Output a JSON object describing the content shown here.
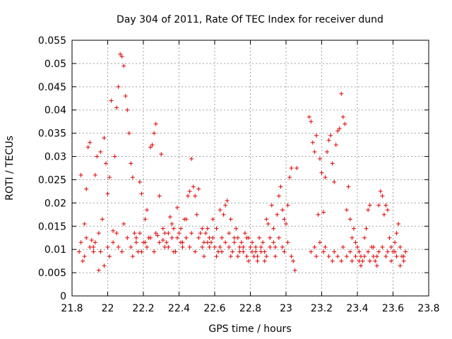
{
  "chart_data": {
    "type": "scatter",
    "title": "Day 304 of 2011, Rate Of TEC Index for receiver dund",
    "xlabel": "GPS time / hours",
    "ylabel": "ROTI / TECUs",
    "xlim": [
      21.8,
      23.8
    ],
    "ylim": [
      0,
      0.055
    ],
    "xticks": [
      21.8,
      22,
      22.2,
      22.4,
      22.6,
      22.8,
      23,
      23.2,
      23.4,
      23.6,
      23.8
    ],
    "xtick_labels": [
      "21.8",
      "22",
      "22.2",
      "22.4",
      "22.6",
      "22.8",
      "23",
      "23.2",
      "23.4",
      "23.6",
      "23.8"
    ],
    "yticks": [
      0,
      0.005,
      0.01,
      0.015,
      0.02,
      0.025,
      0.03,
      0.035,
      0.04,
      0.045,
      0.05,
      0.055
    ],
    "ytick_labels": [
      "0",
      "0.005",
      "0.01",
      "0.015",
      "0.02",
      "0.025",
      "0.03",
      "0.035",
      "0.04",
      "0.045",
      "0.05",
      "0.055"
    ],
    "grid": true,
    "marker": "plus",
    "color": "#dd0000",
    "series": [
      {
        "points": [
          [
            21.84,
            0.0095
          ],
          [
            21.85,
            0.026
          ],
          [
            21.86,
            0.0075
          ],
          [
            21.87,
            0.0155
          ],
          [
            21.88,
            0.023
          ],
          [
            21.89,
            0.032
          ],
          [
            21.9,
            0.033
          ],
          [
            21.91,
            0.012
          ],
          [
            21.92,
            0.0105
          ],
          [
            21.93,
            0.026
          ],
          [
            21.94,
            0.03
          ],
          [
            21.95,
            0.0055
          ],
          [
            21.96,
            0.031
          ],
          [
            21.97,
            0.0165
          ],
          [
            21.98,
            0.034
          ],
          [
            21.99,
            0.0285
          ],
          [
            22.0,
            0.022
          ],
          [
            22.01,
            0.0255
          ],
          [
            22.02,
            0.042
          ],
          [
            22.03,
            0.014
          ],
          [
            22.04,
            0.03
          ],
          [
            22.05,
            0.0405
          ],
          [
            22.06,
            0.045
          ],
          [
            22.07,
            0.052
          ],
          [
            22.08,
            0.0515
          ],
          [
            22.09,
            0.0495
          ],
          [
            22.1,
            0.043
          ],
          [
            22.11,
            0.04
          ],
          [
            22.12,
            0.035
          ],
          [
            22.13,
            0.0285
          ],
          [
            22.14,
            0.0255
          ],
          [
            22.15,
            0.0135
          ],
          [
            22.16,
            0.0115
          ],
          [
            22.17,
            0.0095
          ],
          [
            22.18,
            0.0245
          ],
          [
            22.19,
            0.022
          ],
          [
            22.2,
            0.0115
          ],
          [
            22.21,
            0.0165
          ],
          [
            22.22,
            0.0185
          ],
          [
            22.23,
            0.0125
          ],
          [
            22.24,
            0.032
          ],
          [
            22.25,
            0.0325
          ],
          [
            22.26,
            0.035
          ],
          [
            22.27,
            0.037
          ],
          [
            22.28,
            0.013
          ],
          [
            22.29,
            0.0215
          ],
          [
            22.3,
            0.0305
          ],
          [
            22.31,
            0.012
          ],
          [
            22.32,
            0.0135
          ],
          [
            22.33,
            0.0115
          ],
          [
            22.34,
            0.0105
          ],
          [
            22.35,
            0.017
          ],
          [
            22.36,
            0.0125
          ],
          [
            22.37,
            0.0145
          ],
          [
            22.38,
            0.0095
          ],
          [
            22.39,
            0.019
          ],
          [
            22.4,
            0.0135
          ],
          [
            22.41,
            0.0115
          ],
          [
            22.42,
            0.0105
          ],
          [
            22.43,
            0.0165
          ],
          [
            22.44,
            0.0125
          ],
          [
            22.45,
            0.0215
          ],
          [
            22.46,
            0.0225
          ],
          [
            22.47,
            0.0295
          ],
          [
            22.48,
            0.0235
          ],
          [
            22.49,
            0.0215
          ],
          [
            22.5,
            0.0175
          ],
          [
            22.51,
            0.023
          ],
          [
            22.52,
            0.0135
          ],
          [
            22.53,
            0.0105
          ],
          [
            22.54,
            0.0115
          ],
          [
            22.55,
            0.0135
          ],
          [
            22.56,
            0.0145
          ],
          [
            22.57,
            0.0125
          ],
          [
            22.58,
            0.0115
          ],
          [
            22.59,
            0.0165
          ],
          [
            22.6,
            0.0105
          ],
          [
            22.61,
            0.0145
          ],
          [
            22.62,
            0.0095
          ],
          [
            22.63,
            0.0185
          ],
          [
            22.64,
            0.0125
          ],
          [
            22.65,
            0.0175
          ],
          [
            22.66,
            0.0195
          ],
          [
            22.67,
            0.0205
          ],
          [
            22.68,
            0.0135
          ],
          [
            22.69,
            0.0165
          ],
          [
            22.7,
            0.0095
          ],
          [
            22.71,
            0.0125
          ],
          [
            22.72,
            0.0145
          ],
          [
            22.73,
            0.0085
          ],
          [
            22.74,
            0.0105
          ],
          [
            22.75,
            0.0115
          ],
          [
            22.76,
            0.0095
          ],
          [
            22.77,
            0.0135
          ],
          [
            22.78,
            0.0125
          ],
          [
            22.79,
            0.0075
          ],
          [
            22.8,
            0.0105
          ],
          [
            22.81,
            0.0115
          ],
          [
            22.82,
            0.0085
          ],
          [
            22.83,
            0.0095
          ],
          [
            22.84,
            0.0075
          ],
          [
            22.85,
            0.0125
          ],
          [
            22.86,
            0.0095
          ],
          [
            22.87,
            0.0115
          ],
          [
            22.88,
            0.0075
          ],
          [
            22.89,
            0.0165
          ],
          [
            22.9,
            0.0155
          ],
          [
            22.91,
            0.0125
          ],
          [
            22.92,
            0.0195
          ],
          [
            22.93,
            0.0145
          ],
          [
            22.94,
            0.0105
          ],
          [
            22.95,
            0.0175
          ],
          [
            22.96,
            0.0215
          ],
          [
            22.97,
            0.0235
          ],
          [
            22.98,
            0.0185
          ],
          [
            22.99,
            0.0165
          ],
          [
            23.0,
            0.0155
          ],
          [
            23.01,
            0.0195
          ],
          [
            23.02,
            0.0255
          ],
          [
            23.03,
            0.0275
          ],
          [
            23.04,
            0.0075
          ],
          [
            23.05,
            0.0055
          ],
          [
            23.06,
            0.0275
          ],
          [
            23.13,
            0.0385
          ],
          [
            23.14,
            0.0375
          ],
          [
            23.15,
            0.033
          ],
          [
            23.16,
            0.031
          ],
          [
            23.17,
            0.0345
          ],
          [
            23.18,
            0.0175
          ],
          [
            23.19,
            0.0295
          ],
          [
            23.2,
            0.0265
          ],
          [
            23.21,
            0.018
          ],
          [
            23.22,
            0.0255
          ],
          [
            23.23,
            0.031
          ],
          [
            23.24,
            0.0335
          ],
          [
            23.25,
            0.0345
          ],
          [
            23.26,
            0.0285
          ],
          [
            23.27,
            0.0245
          ],
          [
            23.28,
            0.0325
          ],
          [
            23.29,
            0.0355
          ],
          [
            23.3,
            0.036
          ],
          [
            23.31,
            0.0435
          ],
          [
            23.32,
            0.0385
          ],
          [
            23.33,
            0.037
          ],
          [
            23.34,
            0.0185
          ],
          [
            23.35,
            0.0235
          ],
          [
            23.36,
            0.0165
          ],
          [
            23.37,
            0.0125
          ],
          [
            23.38,
            0.0145
          ],
          [
            23.39,
            0.0115
          ],
          [
            23.4,
            0.0105
          ],
          [
            23.41,
            0.0095
          ],
          [
            23.42,
            0.0085
          ],
          [
            23.43,
            0.0075
          ],
          [
            23.44,
            0.0125
          ],
          [
            23.45,
            0.0145
          ],
          [
            23.46,
            0.0185
          ],
          [
            23.47,
            0.0195
          ],
          [
            23.48,
            0.0105
          ],
          [
            23.49,
            0.0085
          ],
          [
            23.5,
            0.0075
          ],
          [
            23.51,
            0.0065
          ],
          [
            23.52,
            0.0195
          ],
          [
            23.53,
            0.0225
          ],
          [
            23.54,
            0.0215
          ],
          [
            23.55,
            0.0175
          ],
          [
            23.56,
            0.0195
          ],
          [
            23.57,
            0.0185
          ],
          [
            23.58,
            0.0125
          ],
          [
            23.59,
            0.0105
          ],
          [
            23.6,
            0.0095
          ],
          [
            23.61,
            0.0115
          ],
          [
            23.62,
            0.0135
          ],
          [
            23.63,
            0.0155
          ],
          [
            23.64,
            0.0105
          ],
          [
            23.65,
            0.0085
          ],
          [
            23.66,
            0.0075
          ],
          [
            23.67,
            0.0095
          ],
          [
            21.85,
            0.0115
          ],
          [
            21.87,
            0.0085
          ],
          [
            21.88,
            0.0125
          ],
          [
            21.9,
            0.0105
          ],
          [
            21.92,
            0.0095
          ],
          [
            21.93,
            0.0115
          ],
          [
            21.95,
            0.0135
          ],
          [
            21.96,
            0.0095
          ],
          [
            21.98,
            0.0065
          ],
          [
            22.0,
            0.0105
          ],
          [
            22.01,
            0.0085
          ],
          [
            22.03,
            0.0115
          ],
          [
            22.05,
            0.0135
          ],
          [
            22.06,
            0.0105
          ],
          [
            22.08,
            0.0095
          ],
          [
            22.09,
            0.0155
          ],
          [
            22.11,
            0.0125
          ],
          [
            22.13,
            0.0105
          ],
          [
            22.14,
            0.0085
          ],
          [
            22.16,
            0.0125
          ],
          [
            22.18,
            0.0135
          ],
          [
            22.19,
            0.0095
          ],
          [
            22.21,
            0.0115
          ],
          [
            22.22,
            0.0105
          ],
          [
            22.24,
            0.0125
          ],
          [
            22.26,
            0.0095
          ],
          [
            22.27,
            0.0135
          ],
          [
            22.29,
            0.0115
          ],
          [
            22.31,
            0.0145
          ],
          [
            22.32,
            0.0105
          ],
          [
            22.34,
            0.0135
          ],
          [
            22.36,
            0.0155
          ],
          [
            22.37,
            0.0095
          ],
          [
            22.39,
            0.0125
          ],
          [
            22.41,
            0.0145
          ],
          [
            22.42,
            0.0115
          ],
          [
            22.44,
            0.0165
          ],
          [
            22.46,
            0.0105
          ],
          [
            22.47,
            0.0135
          ],
          [
            22.49,
            0.0095
          ],
          [
            22.51,
            0.0125
          ],
          [
            22.53,
            0.0145
          ],
          [
            22.54,
            0.0085
          ],
          [
            22.56,
            0.0115
          ],
          [
            22.57,
            0.0105
          ],
          [
            22.59,
            0.0125
          ],
          [
            22.61,
            0.0085
          ],
          [
            22.63,
            0.0105
          ],
          [
            22.64,
            0.0095
          ],
          [
            22.66,
            0.0115
          ],
          [
            22.68,
            0.0105
          ],
          [
            22.69,
            0.0085
          ],
          [
            22.71,
            0.0115
          ],
          [
            22.73,
            0.0125
          ],
          [
            22.74,
            0.0095
          ],
          [
            22.76,
            0.0105
          ],
          [
            22.78,
            0.0085
          ],
          [
            22.79,
            0.0125
          ],
          [
            22.81,
            0.0095
          ],
          [
            22.83,
            0.0105
          ],
          [
            22.84,
            0.0085
          ],
          [
            22.86,
            0.0105
          ],
          [
            22.88,
            0.0095
          ],
          [
            22.89,
            0.0085
          ],
          [
            22.91,
            0.0105
          ],
          [
            22.93,
            0.0115
          ],
          [
            22.94,
            0.0085
          ],
          [
            22.96,
            0.0125
          ],
          [
            22.98,
            0.0105
          ],
          [
            22.99,
            0.0095
          ],
          [
            23.01,
            0.0115
          ],
          [
            23.03,
            0.0085
          ],
          [
            23.14,
            0.0095
          ],
          [
            23.16,
            0.0105
          ],
          [
            23.17,
            0.0085
          ],
          [
            23.19,
            0.0115
          ],
          [
            23.21,
            0.0095
          ],
          [
            23.22,
            0.0105
          ],
          [
            23.24,
            0.0085
          ],
          [
            23.26,
            0.0075
          ],
          [
            23.27,
            0.0095
          ],
          [
            23.29,
            0.0085
          ],
          [
            23.31,
            0.0075
          ],
          [
            23.32,
            0.0105
          ],
          [
            23.34,
            0.0085
          ],
          [
            23.36,
            0.0095
          ],
          [
            23.37,
            0.0075
          ],
          [
            23.39,
            0.0085
          ],
          [
            23.41,
            0.0075
          ],
          [
            23.42,
            0.0065
          ],
          [
            23.44,
            0.0085
          ],
          [
            23.46,
            0.0095
          ],
          [
            23.47,
            0.0075
          ],
          [
            23.49,
            0.0105
          ],
          [
            23.51,
            0.0085
          ],
          [
            23.52,
            0.0095
          ],
          [
            23.54,
            0.0105
          ],
          [
            23.56,
            0.0085
          ],
          [
            23.57,
            0.0095
          ],
          [
            23.59,
            0.0075
          ],
          [
            23.61,
            0.0095
          ],
          [
            23.62,
            0.0085
          ],
          [
            23.64,
            0.0065
          ],
          [
            23.66,
            0.0085
          ]
        ]
      }
    ]
  }
}
